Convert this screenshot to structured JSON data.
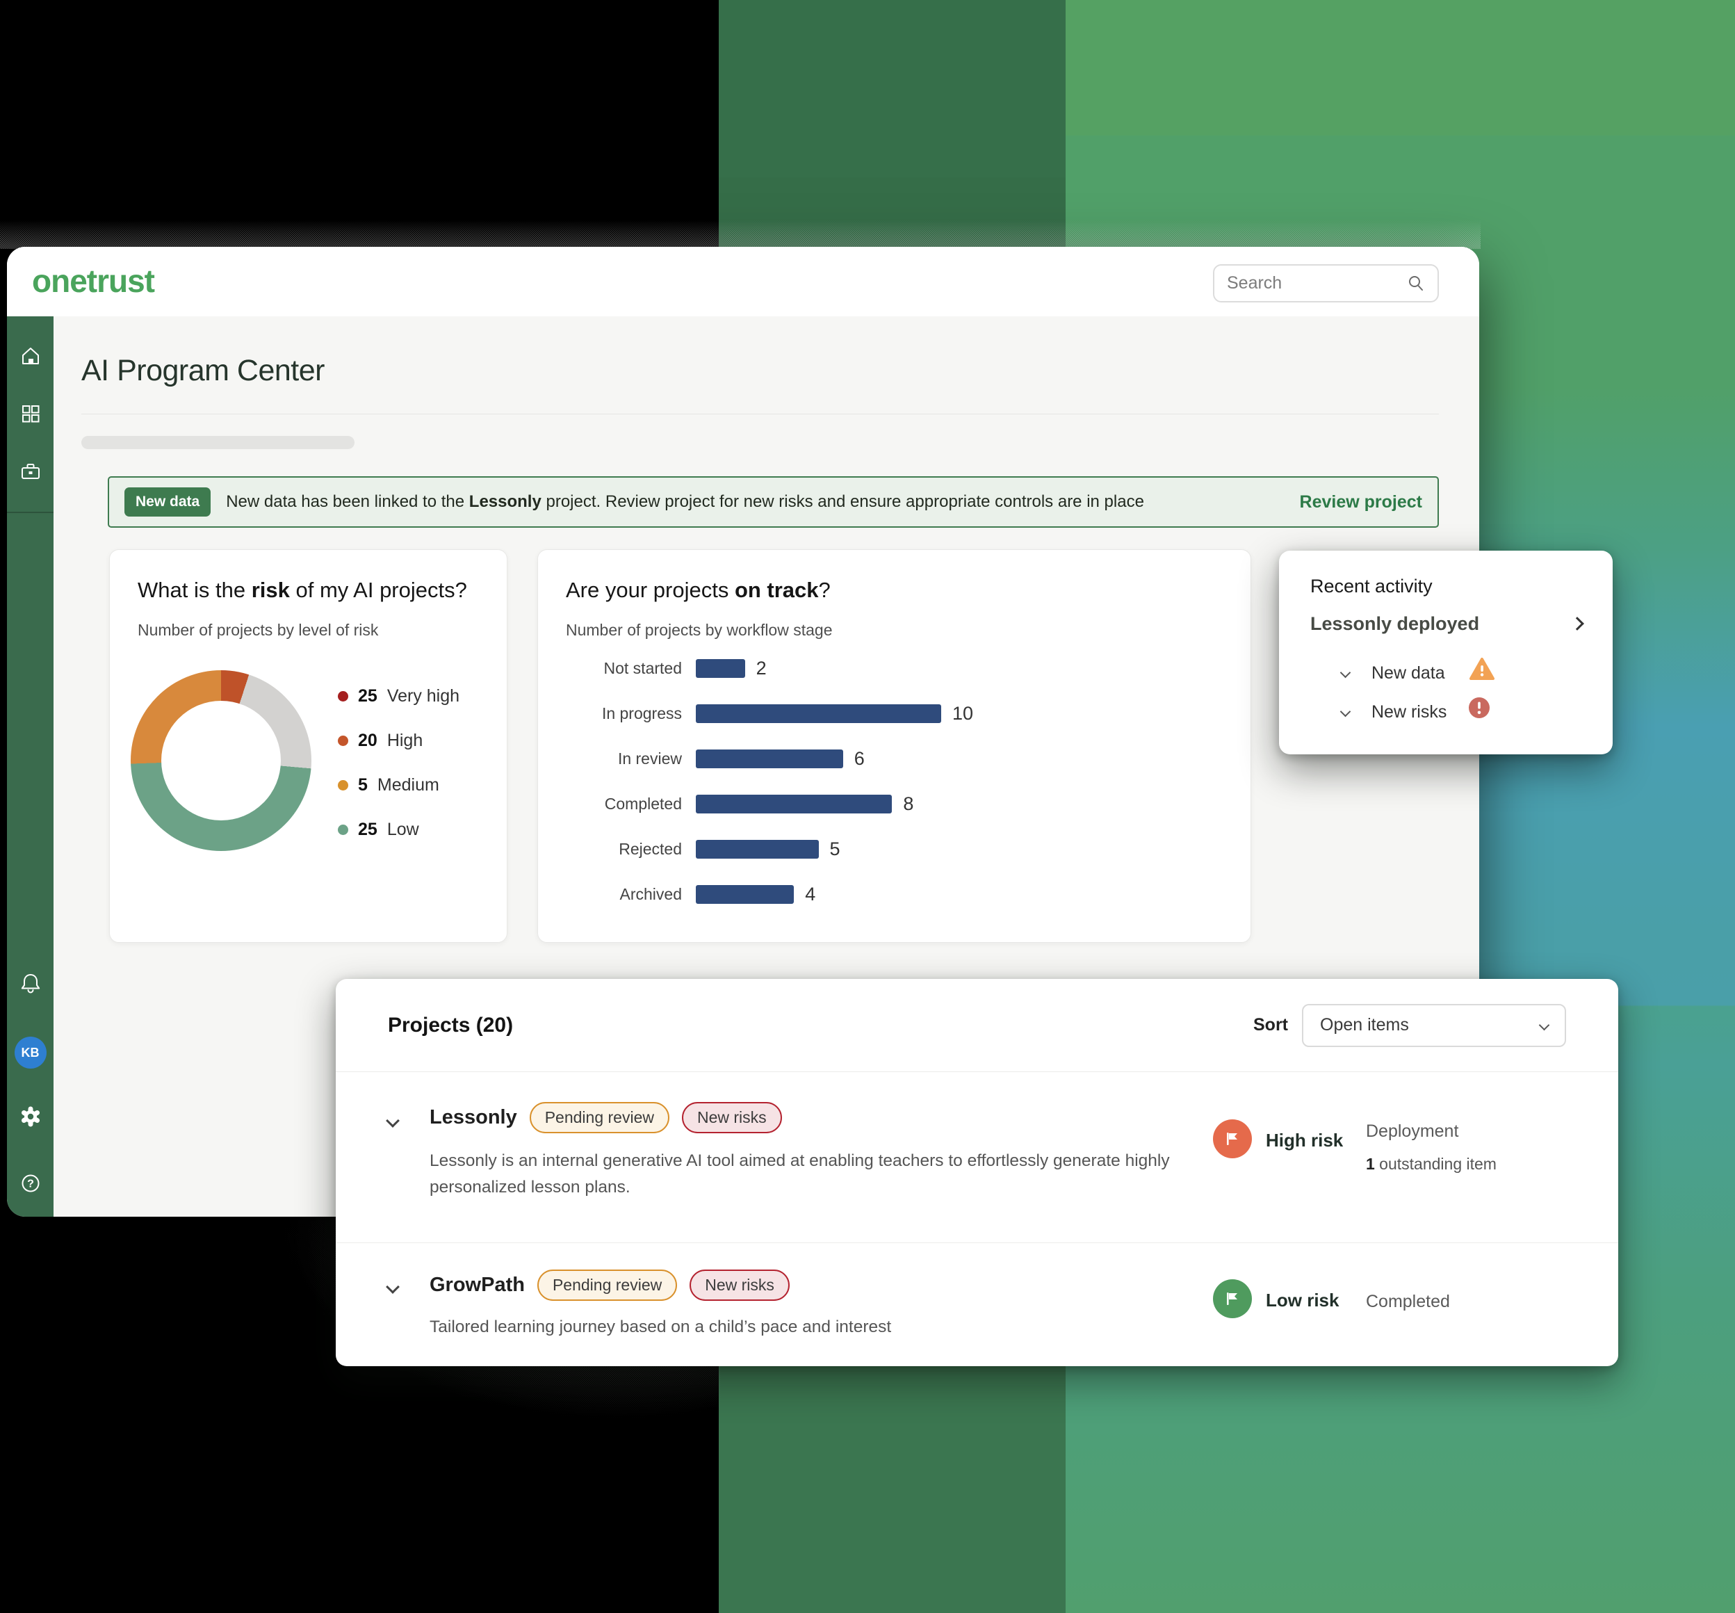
{
  "brand": {
    "logo": "onetrust",
    "color": "#4aa45c"
  },
  "header": {
    "search_placeholder": "Search"
  },
  "page": {
    "title": "AI Program Center"
  },
  "banner": {
    "badge": "New data",
    "msg_pre": "New data has been linked to the ",
    "msg_bold": "Lessonly",
    "msg_post": " project. Review project for new risks and ensure appropriate controls are in place",
    "action": "Review project",
    "accent": "#3e7b4f"
  },
  "risk_card": {
    "title_pre": "What is the ",
    "title_bold": "risk",
    "title_post": " of my AI projects?",
    "subtitle": "Number of projects by level of risk"
  },
  "track_card": {
    "title_pre": "Are your projects ",
    "title_bold": "on track",
    "title_post": "?",
    "subtitle": "Number of projects by workflow stage"
  },
  "activity": {
    "title": "Recent activity",
    "item": "Lessonly deployed",
    "rows": [
      {
        "label": "New data",
        "icon": "warning-triangle",
        "icon_color": "#f2a254"
      },
      {
        "label": "New risks",
        "icon": "alert-circle",
        "icon_color": "#c9695f"
      }
    ]
  },
  "projects": {
    "title": "Projects (20)",
    "sort_label": "Sort",
    "sort_value": "Open items",
    "rows": [
      {
        "name": "Lessonly",
        "badges": [
          "Pending review",
          "New risks"
        ],
        "description": "Lessonly is an internal generative AI tool aimed at enabling teachers to effortlessly generate highly personalized lesson plans.",
        "risk_level": "High risk",
        "risk_color": "#e56a4b",
        "stage": "Deployment",
        "outstanding_bold": "1",
        "outstanding_rest": " outstanding item"
      },
      {
        "name": "GrowPath",
        "badges": [
          "Pending review",
          "New risks"
        ],
        "description": "Tailored learning journey based on a child’s pace and interest",
        "risk_level": "Low risk",
        "risk_color": "#4f9b5e",
        "stage": "Completed"
      }
    ]
  },
  "sidebar": {
    "avatar_initials": "KB",
    "icons": [
      "home",
      "apps-grid",
      "briefcase",
      "bell",
      "avatar",
      "settings-gear",
      "help"
    ]
  },
  "chart_data": [
    {
      "type": "pie",
      "variant": "donut",
      "title": "What is the risk of my AI projects?",
      "subtitle": "Number of projects by level of risk",
      "labels": [
        "Very high",
        "High",
        "Medium",
        "Low"
      ],
      "values": [
        25,
        20,
        5,
        25
      ],
      "legend_dot_colors": [
        "#a51f1f",
        "#c4562b",
        "#d8912c",
        "#6ca287"
      ],
      "ring_slices": [
        {
          "color": "#bf5229",
          "sweep_deg": 18
        },
        {
          "color": "#d3d2d0",
          "sweep_deg": 77
        },
        {
          "color": "#6ca287",
          "sweep_deg": 173
        },
        {
          "color": "#d8893c",
          "sweep_deg": 92
        }
      ],
      "legend_position": "right"
    },
    {
      "type": "bar",
      "orientation": "horizontal",
      "title": "Are your projects on track?",
      "subtitle": "Number of projects by workflow stage",
      "categories": [
        "Not started",
        "In progress",
        "In review",
        "Completed",
        "Rejected",
        "Archived"
      ],
      "values": [
        2,
        10,
        6,
        8,
        5,
        4
      ],
      "bar_color": "#2f4b7c",
      "xlim": [
        0,
        10
      ],
      "grid": false,
      "value_labels": true
    }
  ]
}
